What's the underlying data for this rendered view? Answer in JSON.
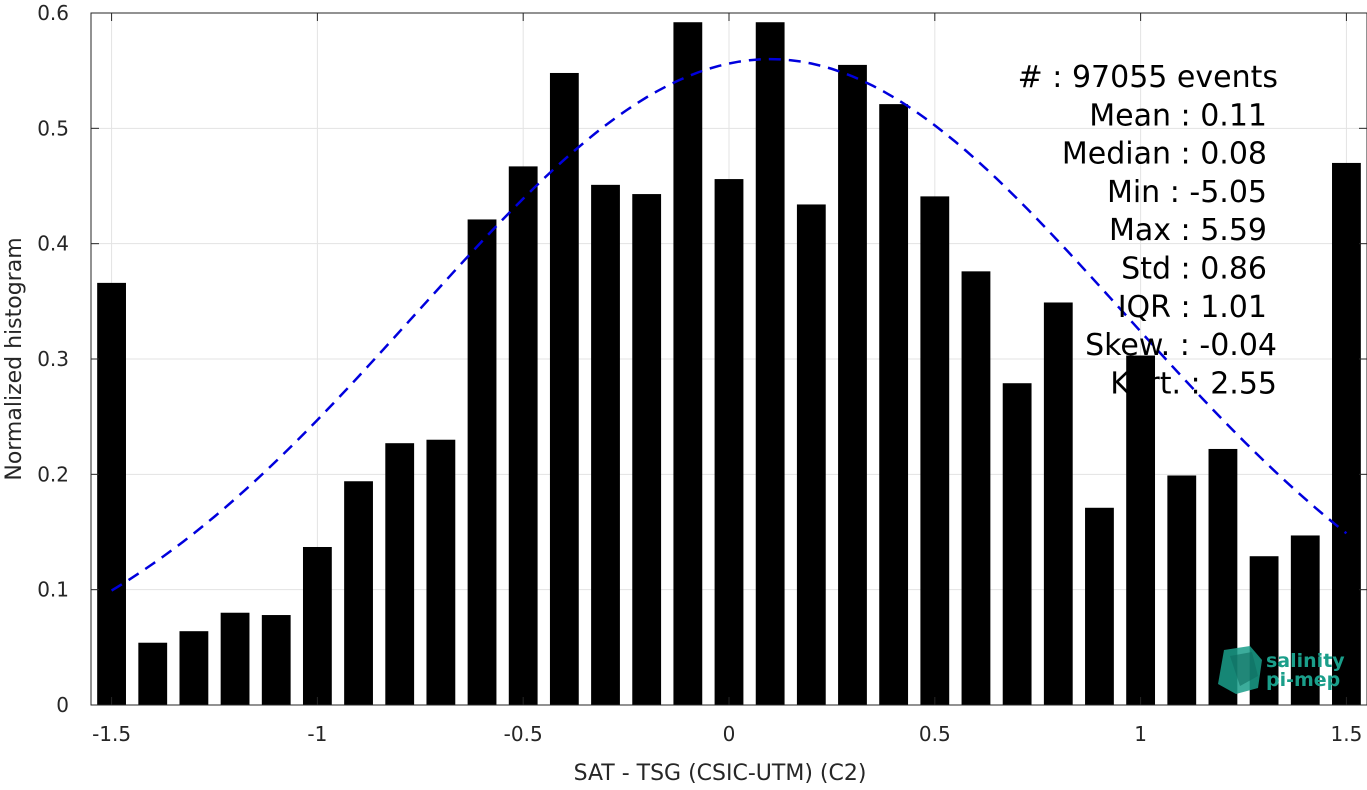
{
  "chart_data": {
    "type": "bar",
    "xlabel": "SAT - TSG (CSIC-UTM) (C2)",
    "ylabel": "Normalized histogram",
    "xlim": [
      -1.55,
      1.55
    ],
    "ylim": [
      0,
      0.6
    ],
    "xticks": [
      -1.5,
      -1,
      -0.5,
      0,
      0.5,
      1,
      1.5
    ],
    "xtick_labels": [
      "-1.5",
      "-1",
      "-0.5",
      "0",
      "0.5",
      "1",
      "1.5"
    ],
    "yticks": [
      0,
      0.1,
      0.2,
      0.3,
      0.4,
      0.5,
      0.6
    ],
    "ytick_labels": [
      "0",
      "0.1",
      "0.2",
      "0.3",
      "0.4",
      "0.5",
      "0.6"
    ],
    "grid": true,
    "bar_color": "#000000",
    "bin_width": 0.1,
    "x": [
      -1.5,
      -1.4,
      -1.3,
      -1.2,
      -1.1,
      -1.0,
      -0.9,
      -0.8,
      -0.7,
      -0.6,
      -0.5,
      -0.4,
      -0.3,
      -0.2,
      -0.1,
      0.0,
      0.1,
      0.2,
      0.3,
      0.4,
      0.5,
      0.6,
      0.7,
      0.8,
      0.9,
      1.0,
      1.1,
      1.2,
      1.3,
      1.4,
      1.5
    ],
    "values": [
      0.366,
      0.054,
      0.064,
      0.08,
      0.078,
      0.137,
      0.194,
      0.227,
      0.23,
      0.421,
      0.467,
      0.548,
      0.451,
      0.443,
      0.592,
      0.456,
      0.592,
      0.434,
      0.555,
      0.521,
      0.441,
      0.376,
      0.279,
      0.349,
      0.171,
      0.303,
      0.199,
      0.222,
      0.129,
      0.147,
      0.47
    ],
    "fit_curve": {
      "type": "gaussian",
      "mean": 0.1,
      "std": 0.86,
      "peak": 0.56,
      "x_range": [
        -1.5,
        1.5
      ],
      "color": "#0000dd",
      "style": "dashed"
    },
    "stats_lines": [
      "#  : 97055 events",
      "Mean : 0.11",
      "Median : 0.08",
      "Min : -5.05",
      "Max : 5.59",
      "Std : 0.86",
      "IQR : 1.01",
      "Skew. : -0.04",
      "Kurt. : 2.55"
    ],
    "logo": {
      "line1": "salinity",
      "line2": "pi-mep",
      "color": "#1a9e8a"
    }
  }
}
